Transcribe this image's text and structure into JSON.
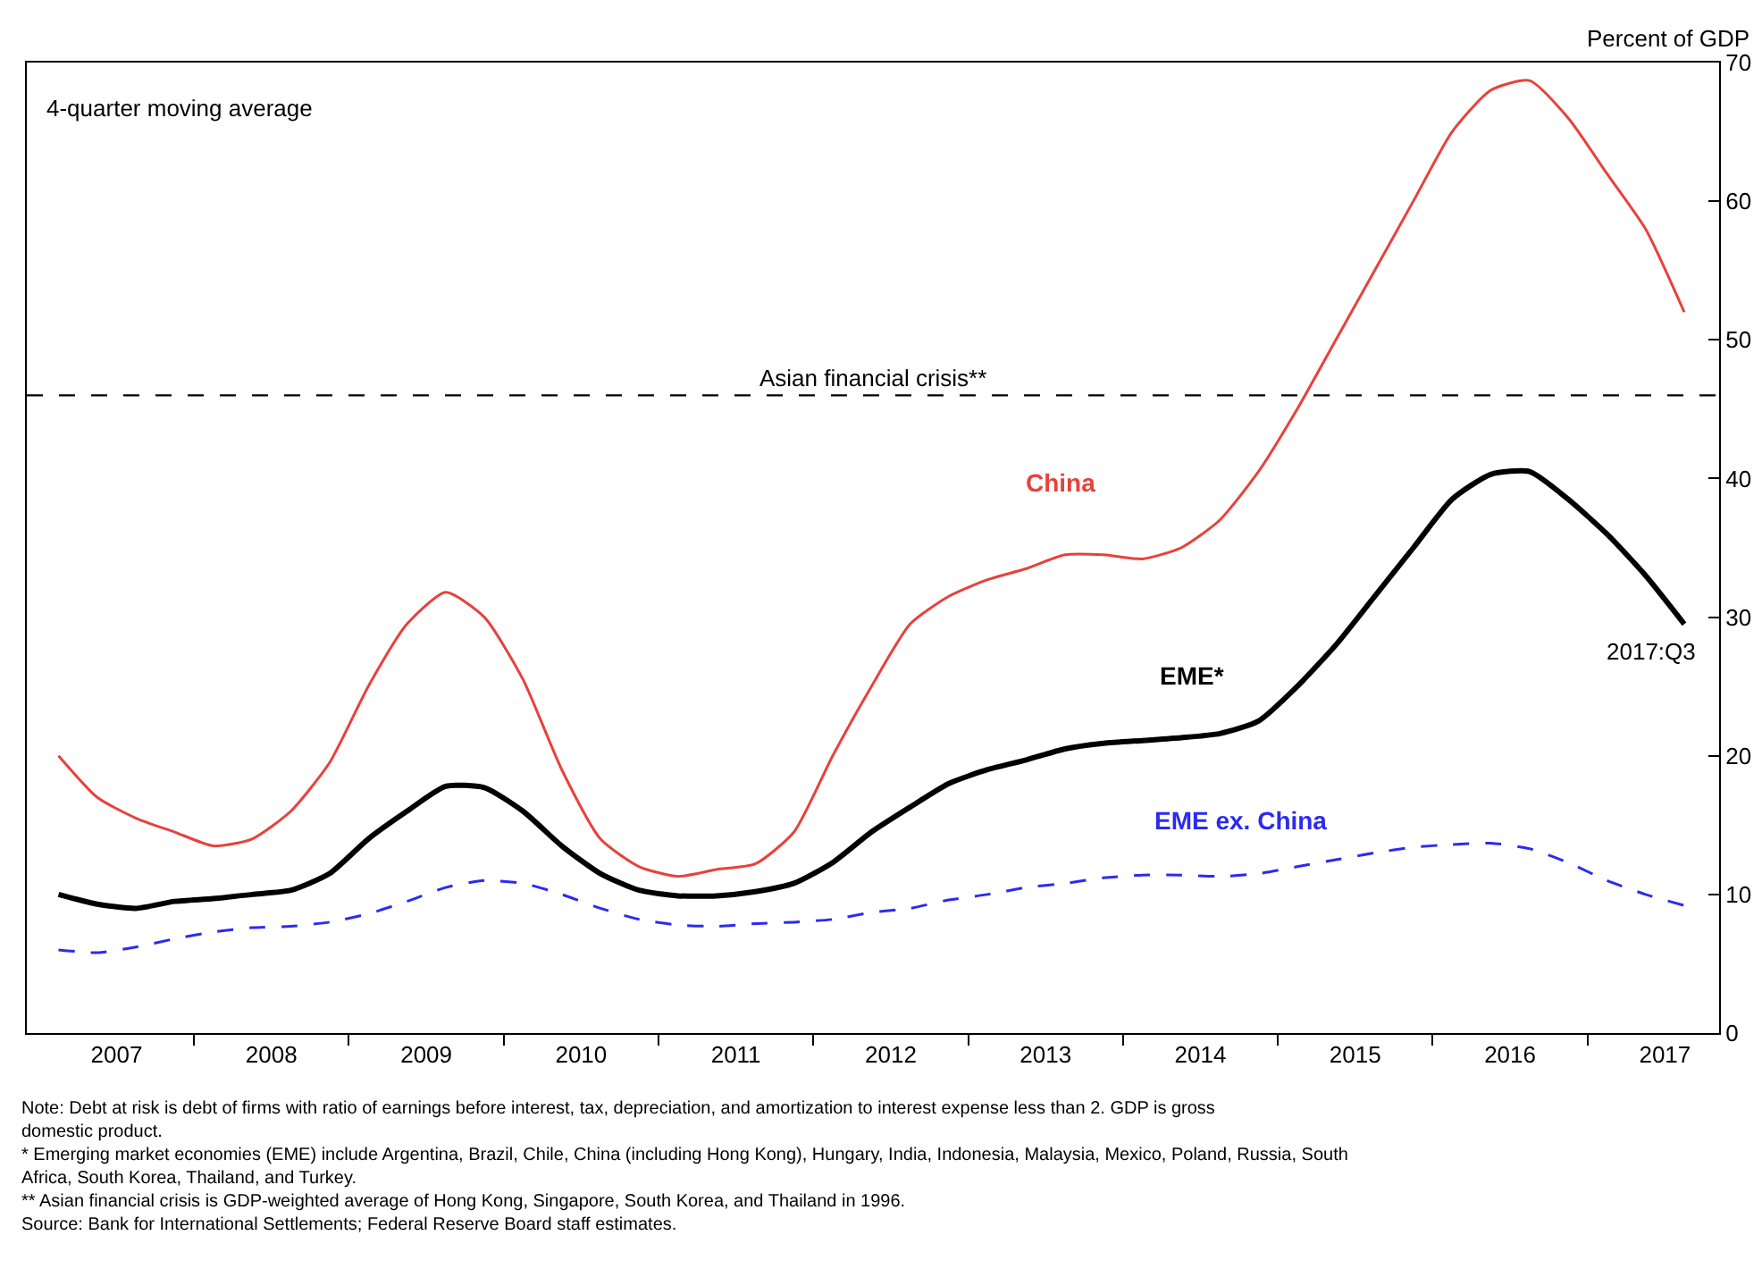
{
  "chart_data": {
    "type": "line",
    "ylabel": "Percent of GDP",
    "x": [
      2007.125,
      2007.375,
      2007.625,
      2007.875,
      2008.125,
      2008.375,
      2008.625,
      2008.875,
      2009.125,
      2009.375,
      2009.625,
      2009.875,
      2010.125,
      2010.375,
      2010.625,
      2010.875,
      2011.125,
      2011.375,
      2011.625,
      2011.875,
      2012.125,
      2012.375,
      2012.625,
      2012.875,
      2013.125,
      2013.375,
      2013.625,
      2013.875,
      2014.125,
      2014.375,
      2014.625,
      2014.875,
      2015.125,
      2015.375,
      2015.625,
      2015.875,
      2016.125,
      2016.375,
      2016.625,
      2016.875,
      2017.125,
      2017.375,
      2017.625
    ],
    "series": [
      {
        "name": "China",
        "color": "#e8413c",
        "line_style": "solid",
        "values": [
          20,
          17,
          15.5,
          14.5,
          13.5,
          14,
          16,
          19.5,
          25,
          29.5,
          31.8,
          30,
          25.5,
          19,
          14,
          12,
          11.3,
          11.8,
          12.2,
          14.5,
          20,
          25,
          29.5,
          31.5,
          32.7,
          33.5,
          34.5,
          34.5,
          34.2,
          35,
          37,
          40.5,
          45,
          50,
          55,
          60,
          65,
          68,
          68.7,
          66,
          62,
          58,
          52
        ]
      },
      {
        "name": "EME*",
        "color": "#000000",
        "line_style": "solid",
        "values": [
          10,
          9.3,
          9,
          9.5,
          9.7,
          10,
          10.3,
          11.5,
          14,
          16,
          17.8,
          17.7,
          16,
          13.5,
          11.5,
          10.3,
          9.9,
          9.9,
          10.2,
          10.8,
          12.3,
          14.5,
          16.3,
          18,
          19,
          19.7,
          20.5,
          20.9,
          21.1,
          21.3,
          21.6,
          22.5,
          25,
          28,
          31.5,
          35,
          38.5,
          40.3,
          40.5,
          38.5,
          36,
          33,
          29.5
        ]
      },
      {
        "name": "EME ex. China",
        "color": "#2b2bf0",
        "line_style": "dashed",
        "values": [
          6,
          5.8,
          6.2,
          6.8,
          7.3,
          7.6,
          7.7,
          8,
          8.6,
          9.5,
          10.5,
          11,
          10.8,
          10,
          9,
          8.2,
          7.8,
          7.7,
          7.9,
          8,
          8.2,
          8.7,
          9,
          9.6,
          10,
          10.5,
          10.8,
          11.2,
          11.4,
          11.4,
          11.3,
          11.5,
          12,
          12.5,
          13,
          13.4,
          13.6,
          13.7,
          13.3,
          12.3,
          11,
          10,
          9.2
        ]
      }
    ],
    "xlim": [
      2006.92,
      2017.85
    ],
    "xticks": [
      {
        "value": 2007.5,
        "label": "2007"
      },
      {
        "value": 2008.5,
        "label": "2008"
      },
      {
        "value": 2009.5,
        "label": "2009"
      },
      {
        "value": 2010.5,
        "label": "2010"
      },
      {
        "value": 2011.5,
        "label": "2011"
      },
      {
        "value": 2012.5,
        "label": "2012"
      },
      {
        "value": 2013.5,
        "label": "2013"
      },
      {
        "value": 2014.5,
        "label": "2014"
      },
      {
        "value": 2015.5,
        "label": "2015"
      },
      {
        "value": 2016.5,
        "label": "2016"
      },
      {
        "value": 2017.5,
        "label": "2017"
      },
      {
        "value": 2008,
        "label": null
      },
      {
        "value": 2009,
        "label": null
      },
      {
        "value": 2010,
        "label": null
      },
      {
        "value": 2011,
        "label": null
      },
      {
        "value": 2012,
        "label": null
      },
      {
        "value": 2013,
        "label": null
      },
      {
        "value": 2014,
        "label": null
      },
      {
        "value": 2015,
        "label": null
      },
      {
        "value": 2016,
        "label": null
      },
      {
        "value": 2017,
        "label": null
      }
    ],
    "ylim": [
      0,
      70
    ],
    "yticks": [
      0,
      10,
      20,
      30,
      40,
      50,
      60,
      70
    ],
    "legend": false,
    "ref_lines": [
      {
        "axis": "y",
        "value": 46,
        "label": "Asian financial crisis**",
        "color": "#000000",
        "line_style": "dashed"
      }
    ],
    "annotations": [
      "4-quarter moving average",
      {
        "text": "2017:Q3",
        "x": 2017.625,
        "y": 29.5
      },
      "Note: Debt at risk is debt of firms with ratio of earnings before interest, tax, depreciation, and amortization to interest expense less than 2. GDP is gross domestic product.",
      "* Emerging market economies (EME) include Argentina, Brazil, Chile, China (including Hong Kong), Hungary, India, Indonesia, Malaysia, Mexico, Poland, Russia, South Africa, South Korea, Thailand, and Turkey.",
      "** Asian financial crisis is GDP-weighted average of Hong Kong, Singapore, South Korea, and Thailand in 1996.",
      "Source: Bank for International Settlements; Federal Reserve Board staff estimates."
    ]
  }
}
